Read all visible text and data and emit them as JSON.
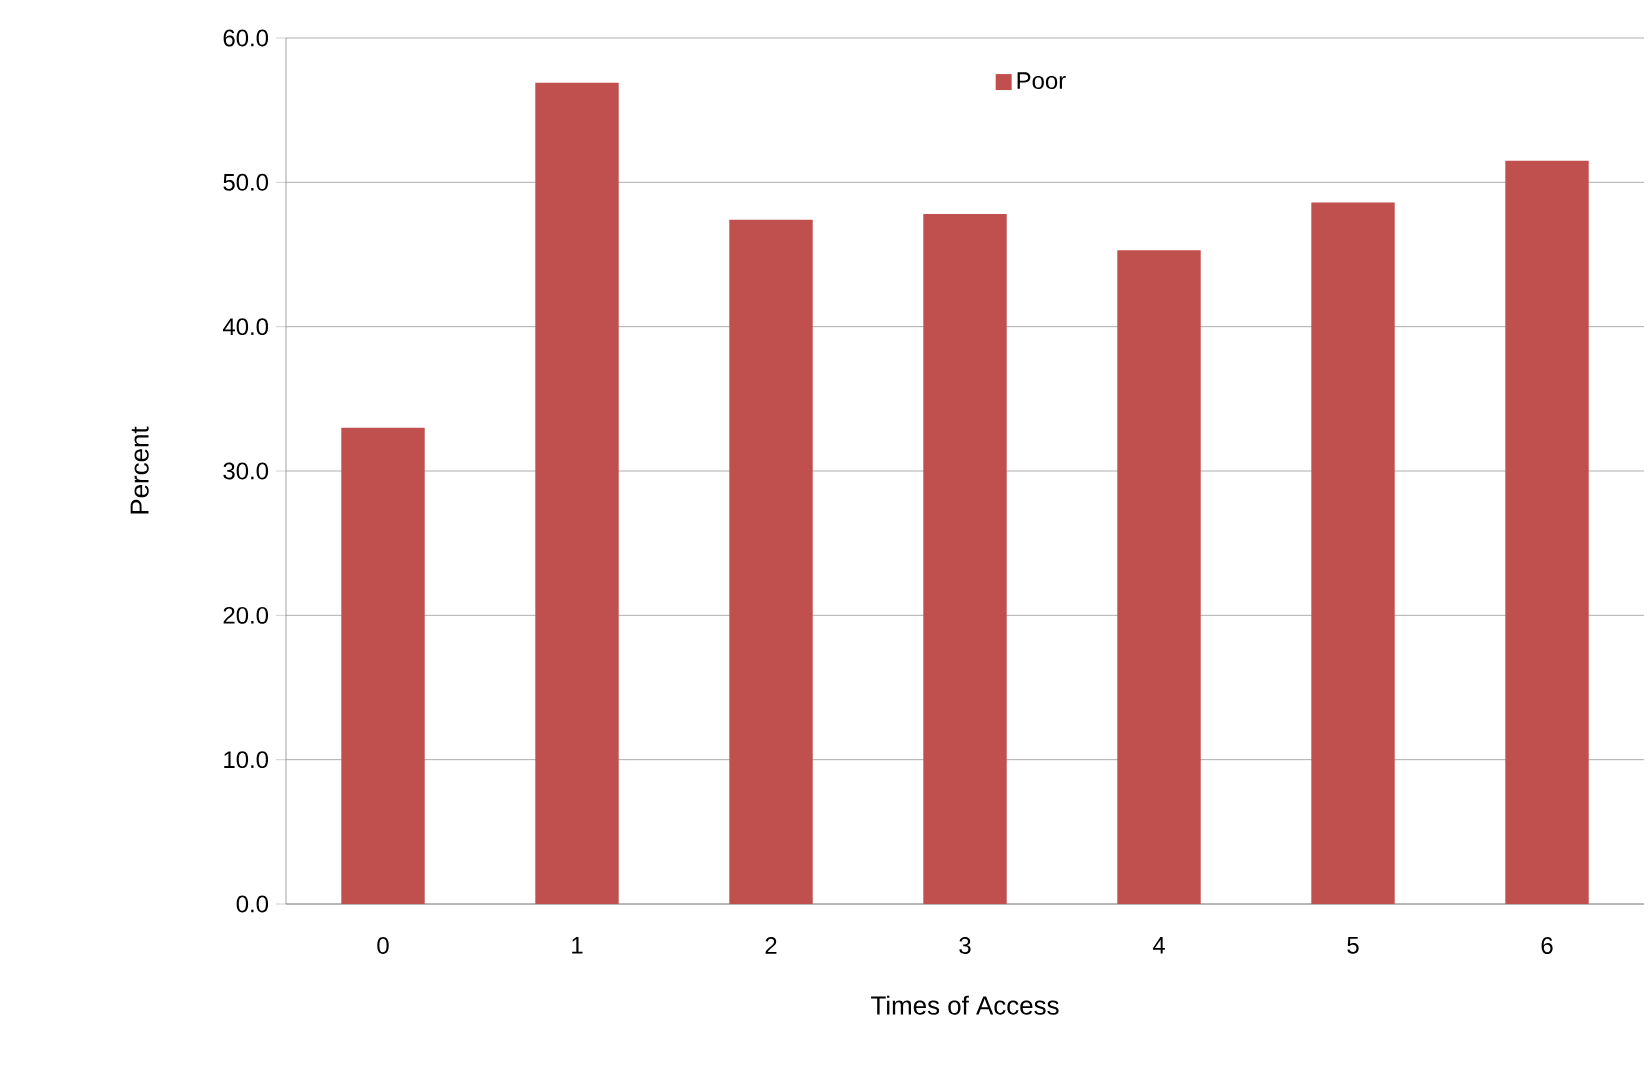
{
  "chart_data": {
    "type": "bar",
    "xlabel": "Times of Access",
    "ylabel": "Percent",
    "categories": [
      "0",
      "1",
      "2",
      "3",
      "4",
      "5",
      "6"
    ],
    "series": [
      {
        "name": "Poor",
        "color": "#c0504d",
        "values": [
          33.0,
          56.9,
          47.4,
          47.8,
          45.3,
          48.6,
          51.5
        ]
      }
    ],
    "ylim": [
      0,
      60
    ],
    "yticks": [
      {
        "value": 0,
        "label": "0.0"
      },
      {
        "value": 10,
        "label": "10.0"
      },
      {
        "value": 20,
        "label": "20.0"
      },
      {
        "value": 30,
        "label": "30.0"
      },
      {
        "value": 40,
        "label": "40.0"
      },
      {
        "value": 50,
        "label": "50.0"
      },
      {
        "value": 60,
        "label": "60.0"
      }
    ],
    "grid": "y",
    "legend": "top"
  }
}
